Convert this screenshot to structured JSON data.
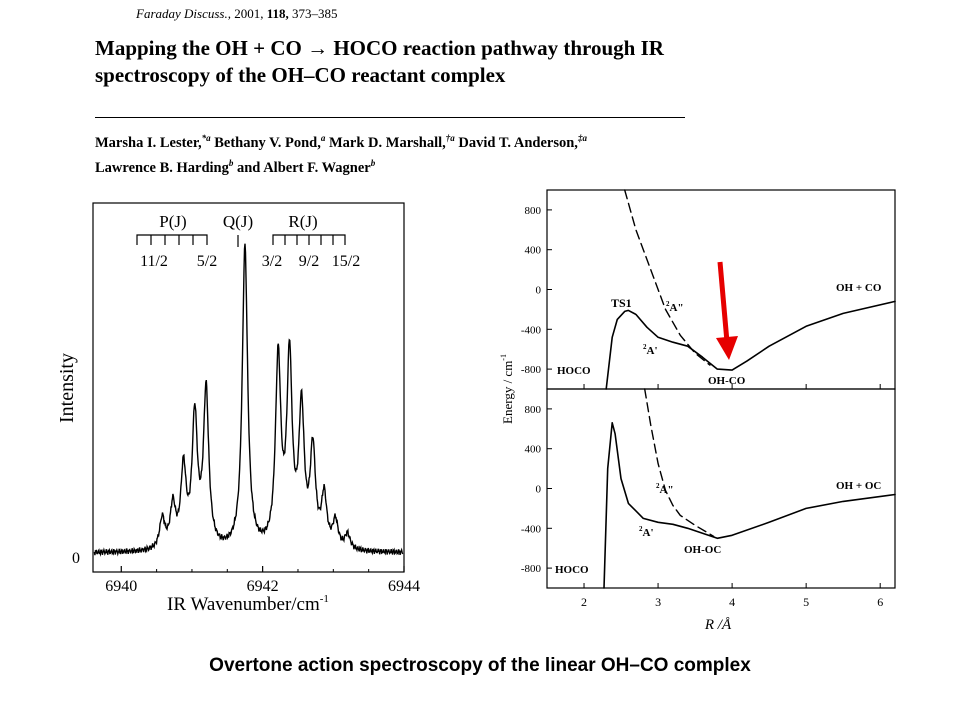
{
  "header": {
    "journal": "Faraday Discuss.,",
    "year": "2001,",
    "volume": "118,",
    "pages": "373–385",
    "title_line1": "Mapping the OH + CO → HOCO reaction pathway through IR",
    "title_line2": "spectroscopy of the OH–CO reactant complex",
    "authors_line1": [
      {
        "name": "Marsha I. Lester,",
        "sup": "*a"
      },
      {
        "name": "Bethany V. Pond,",
        "sup": "a"
      },
      {
        "name": "Mark D. Marshall,",
        "sup": "†a"
      },
      {
        "name": "David T. Anderson,",
        "sup": "‡a"
      }
    ],
    "authors_line2": [
      {
        "name": "Lawrence B. Harding",
        "sup": "b"
      },
      {
        "name": "and Albert F. Wagner",
        "sup": "b"
      }
    ]
  },
  "chart_data": [
    {
      "type": "line",
      "xlabel": "IR Wavenumber/cm",
      "xlabel_sup": "-1",
      "ylabel": "Intensity",
      "xlim": [
        6939.6,
        6944
      ],
      "xticks": [
        "6940",
        "6942",
        "6944"
      ],
      "yticks": [
        "0"
      ],
      "annotations": {
        "branches": [
          "P(J)",
          "Q(J)",
          "R(J)"
        ],
        "p_labels": [
          "11/2",
          "5/2"
        ],
        "r_labels": [
          "3/2",
          "9/2",
          "15/2"
        ]
      },
      "peaks": {
        "x": [
          6940.58,
          6940.73,
          6940.88,
          6941.04,
          6941.2,
          6941.75,
          6942.22,
          6942.38,
          6942.55,
          6942.71,
          6942.87,
          6943.03,
          6943.2
        ],
        "heights": [
          0.1,
          0.14,
          0.26,
          0.43,
          0.52,
          1.0,
          0.62,
          0.62,
          0.45,
          0.32,
          0.17,
          0.09,
          0.05
        ]
      }
    },
    {
      "type": "line",
      "xlabel": "R /Å",
      "ylabel": "Energy / cm",
      "ylabel_sup": "-1",
      "xlim": [
        1.5,
        6.2
      ],
      "xticks": [
        "2",
        "3",
        "4",
        "5",
        "6"
      ],
      "panels": [
        {
          "ylim": [
            -1000,
            1000
          ],
          "yticks": [
            "800",
            "400",
            "0",
            "-400",
            "-800"
          ],
          "labels": {
            "left": "HOCO",
            "ts": "TS1",
            "excited": "A\"",
            "ground": "A'",
            "minimum": "OH-CO",
            "asymptote": "OH + CO",
            "state_sup": "2"
          },
          "solid_curve": {
            "x": [
              2.3,
              2.38,
              2.45,
              2.55,
              2.6,
              2.7,
              2.85,
              3.0,
              3.2,
              3.4,
              3.6,
              3.8,
              4.0,
              4.2,
              4.5,
              5.0,
              5.5,
              6.2
            ],
            "y": [
              -1000,
              -480,
              -300,
              -220,
              -210,
              -250,
              -380,
              -480,
              -530,
              -570,
              -680,
              -800,
              -810,
              -720,
              -570,
              -370,
              -240,
              -120
            ]
          },
          "dashed_curve": {
            "x": [
              2.55,
              2.7,
              2.9,
              3.1,
              3.3,
              3.5,
              3.7
            ],
            "y": [
              1000,
              600,
              200,
              -200,
              -460,
              -640,
              -760
            ]
          }
        },
        {
          "ylim": [
            -1000,
            1000
          ],
          "yticks": [
            "800",
            "400",
            "0",
            "-400",
            "-800"
          ],
          "labels": {
            "left": "HOCO",
            "excited": "A\"",
            "ground": "A'",
            "minimum": "OH-OC",
            "asymptote": "OH + OC",
            "state_sup": "2"
          },
          "solid_curve": {
            "x": [
              2.27,
              2.32,
              2.38,
              2.42,
              2.5,
              2.6,
              2.8,
              3.0,
              3.2,
              3.4,
              3.6,
              3.8,
              4.0,
              4.5,
              5.0,
              5.5,
              6.2
            ],
            "y": [
              -1000,
              200,
              660,
              550,
              100,
              -150,
              -300,
              -340,
              -360,
              -400,
              -450,
              -500,
              -470,
              -340,
              -200,
              -130,
              -60
            ]
          },
          "dashed_curve": {
            "x": [
              2.82,
              2.9,
              3.0,
              3.1,
              3.2,
              3.3,
              3.5,
              3.75
            ],
            "y": [
              1000,
              640,
              250,
              -20,
              -170,
              -270,
              -370,
              -480
            ]
          }
        }
      ]
    }
  ],
  "annotation_arrow_color": "#e60000",
  "caption": "Overtone action spectroscopy of the linear OH–CO complex"
}
